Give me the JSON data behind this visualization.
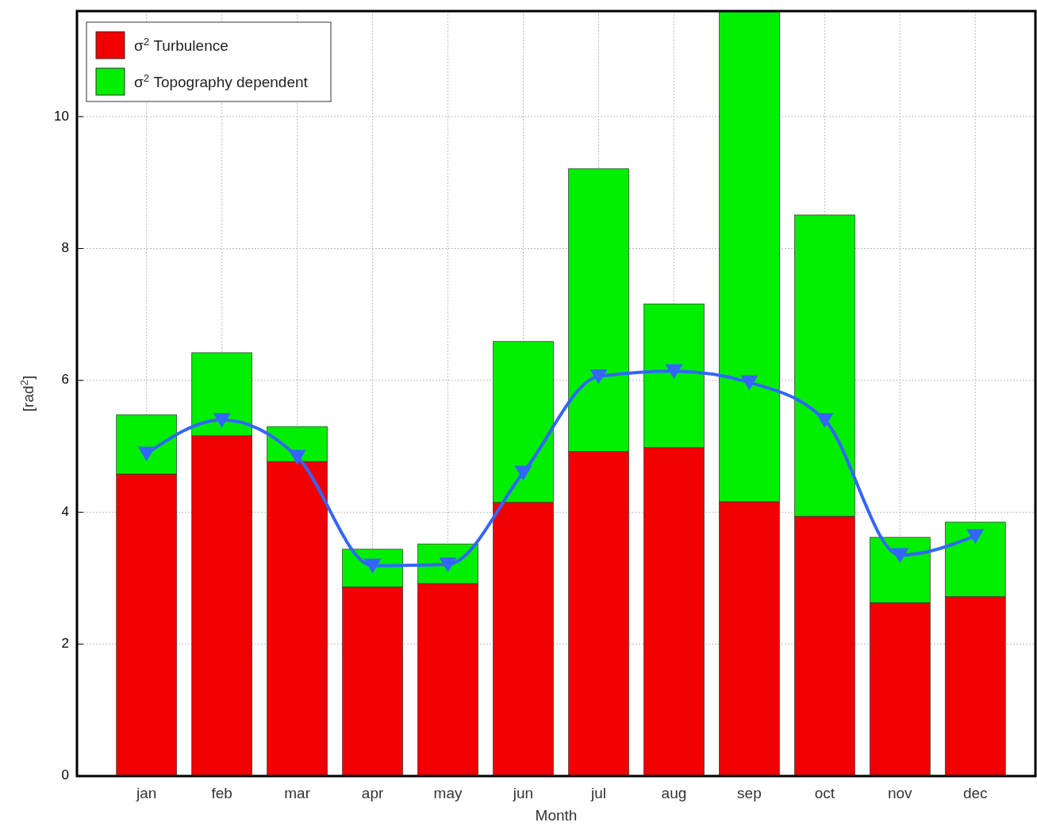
{
  "chart_data": {
    "type": "bar",
    "xlabel": "Month",
    "ylabel": "[rad$^{2}$]",
    "categories": [
      "jan",
      "feb",
      "mar",
      "apr",
      "may",
      "jun",
      "jul",
      "aug",
      "sep",
      "oct",
      "nov",
      "dec"
    ],
    "stacked": true,
    "ylim": [
      0,
      11.6
    ],
    "yticks": [
      0,
      2,
      4,
      6,
      8,
      10
    ],
    "grid": true,
    "legend": "top left",
    "series": [
      {
        "name": "σ$^{2}$ Turbulence",
        "color": "#f00000",
        "values": [
          4.58,
          5.16,
          4.77,
          2.87,
          2.92,
          4.15,
          4.92,
          4.98,
          4.16,
          3.94,
          2.63,
          2.72
        ]
      },
      {
        "name": "σ$^{2}$ Topography dependent",
        "color": "#00ee00",
        "values": [
          0.9,
          1.26,
          0.53,
          0.57,
          0.6,
          2.44,
          4.29,
          2.18,
          7.44,
          4.57,
          0.99,
          1.13
        ]
      },
      {
        "type": "line",
        "color": "#3366ff",
        "marker": "triangle",
        "values": [
          4.89,
          5.4,
          4.84,
          3.19,
          3.21,
          4.6,
          6.06,
          6.14,
          5.97,
          5.4,
          3.35,
          3.64
        ]
      }
    ]
  }
}
